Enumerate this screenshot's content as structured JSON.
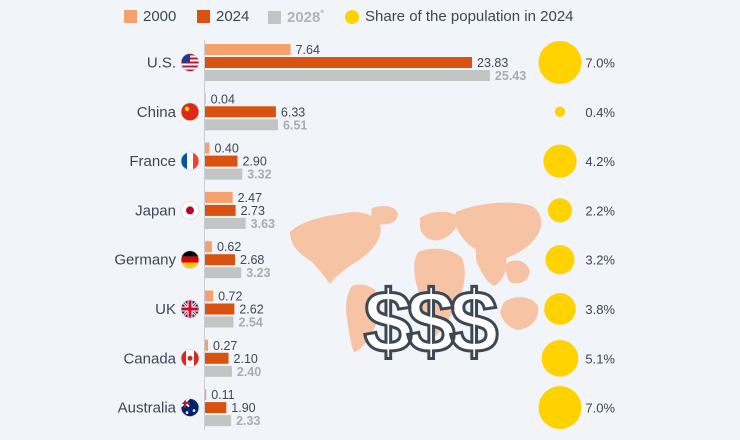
{
  "legend": {
    "y2000": "2000",
    "y2024": "2024",
    "y2028": "2028",
    "y2028_mark": "*",
    "share": "Share of the population in 2024"
  },
  "colors": {
    "y2000": "#f6a06c",
    "y2024": "#d9520f",
    "y2028": "#c3c4c4",
    "bubble": "#ffd200",
    "map": "#f7c3a5",
    "background": "#f1f4f8",
    "text": "#3d4756"
  },
  "decor": {
    "dollar_text": "$$$"
  },
  "chart_data": {
    "type": "bar",
    "orientation": "horizontal",
    "title": "",
    "xlabel": "",
    "ylabel": "",
    "categories": [
      "U.S.",
      "China",
      "France",
      "Japan",
      "Germany",
      "UK",
      "Canada",
      "Australia"
    ],
    "flags": [
      "us-flag-icon",
      "china-flag-icon",
      "france-flag-icon",
      "japan-flag-icon",
      "germany-flag-icon",
      "uk-flag-icon",
      "canada-flag-icon",
      "australia-flag-icon"
    ],
    "series": [
      {
        "name": "2000",
        "values": [
          7.64,
          0.04,
          0.4,
          2.47,
          0.62,
          0.72,
          0.27,
          0.11
        ],
        "labels": [
          "7.64",
          "0.04",
          "0.40",
          "2.47",
          "0.62",
          "0.72",
          "0.27",
          "0.11"
        ]
      },
      {
        "name": "2024",
        "values": [
          23.83,
          6.33,
          2.9,
          2.73,
          2.68,
          2.62,
          2.1,
          1.9
        ],
        "labels": [
          "23.83",
          "6.33",
          "2.90",
          "2.73",
          "2.68",
          "2.62",
          "2.10",
          "1.90"
        ]
      },
      {
        "name": "2028*",
        "values": [
          25.43,
          6.51,
          3.32,
          3.63,
          3.23,
          2.54,
          2.4,
          2.33
        ],
        "labels": [
          "25.43",
          "6.51",
          "3.32",
          "3.63",
          "3.23",
          "2.54",
          "2.40",
          "2.33"
        ]
      }
    ],
    "population_share_2024": {
      "name": "Share of the population in 2024",
      "values": [
        7.0,
        0.4,
        4.2,
        2.2,
        3.2,
        3.8,
        5.1,
        7.0
      ],
      "labels": [
        "7.0%",
        "0.4%",
        "4.2%",
        "2.2%",
        "3.2%",
        "3.8%",
        "5.1%",
        "7.0%"
      ]
    },
    "xlim": [
      0,
      30
    ],
    "grid": false,
    "legend_position": "top"
  }
}
